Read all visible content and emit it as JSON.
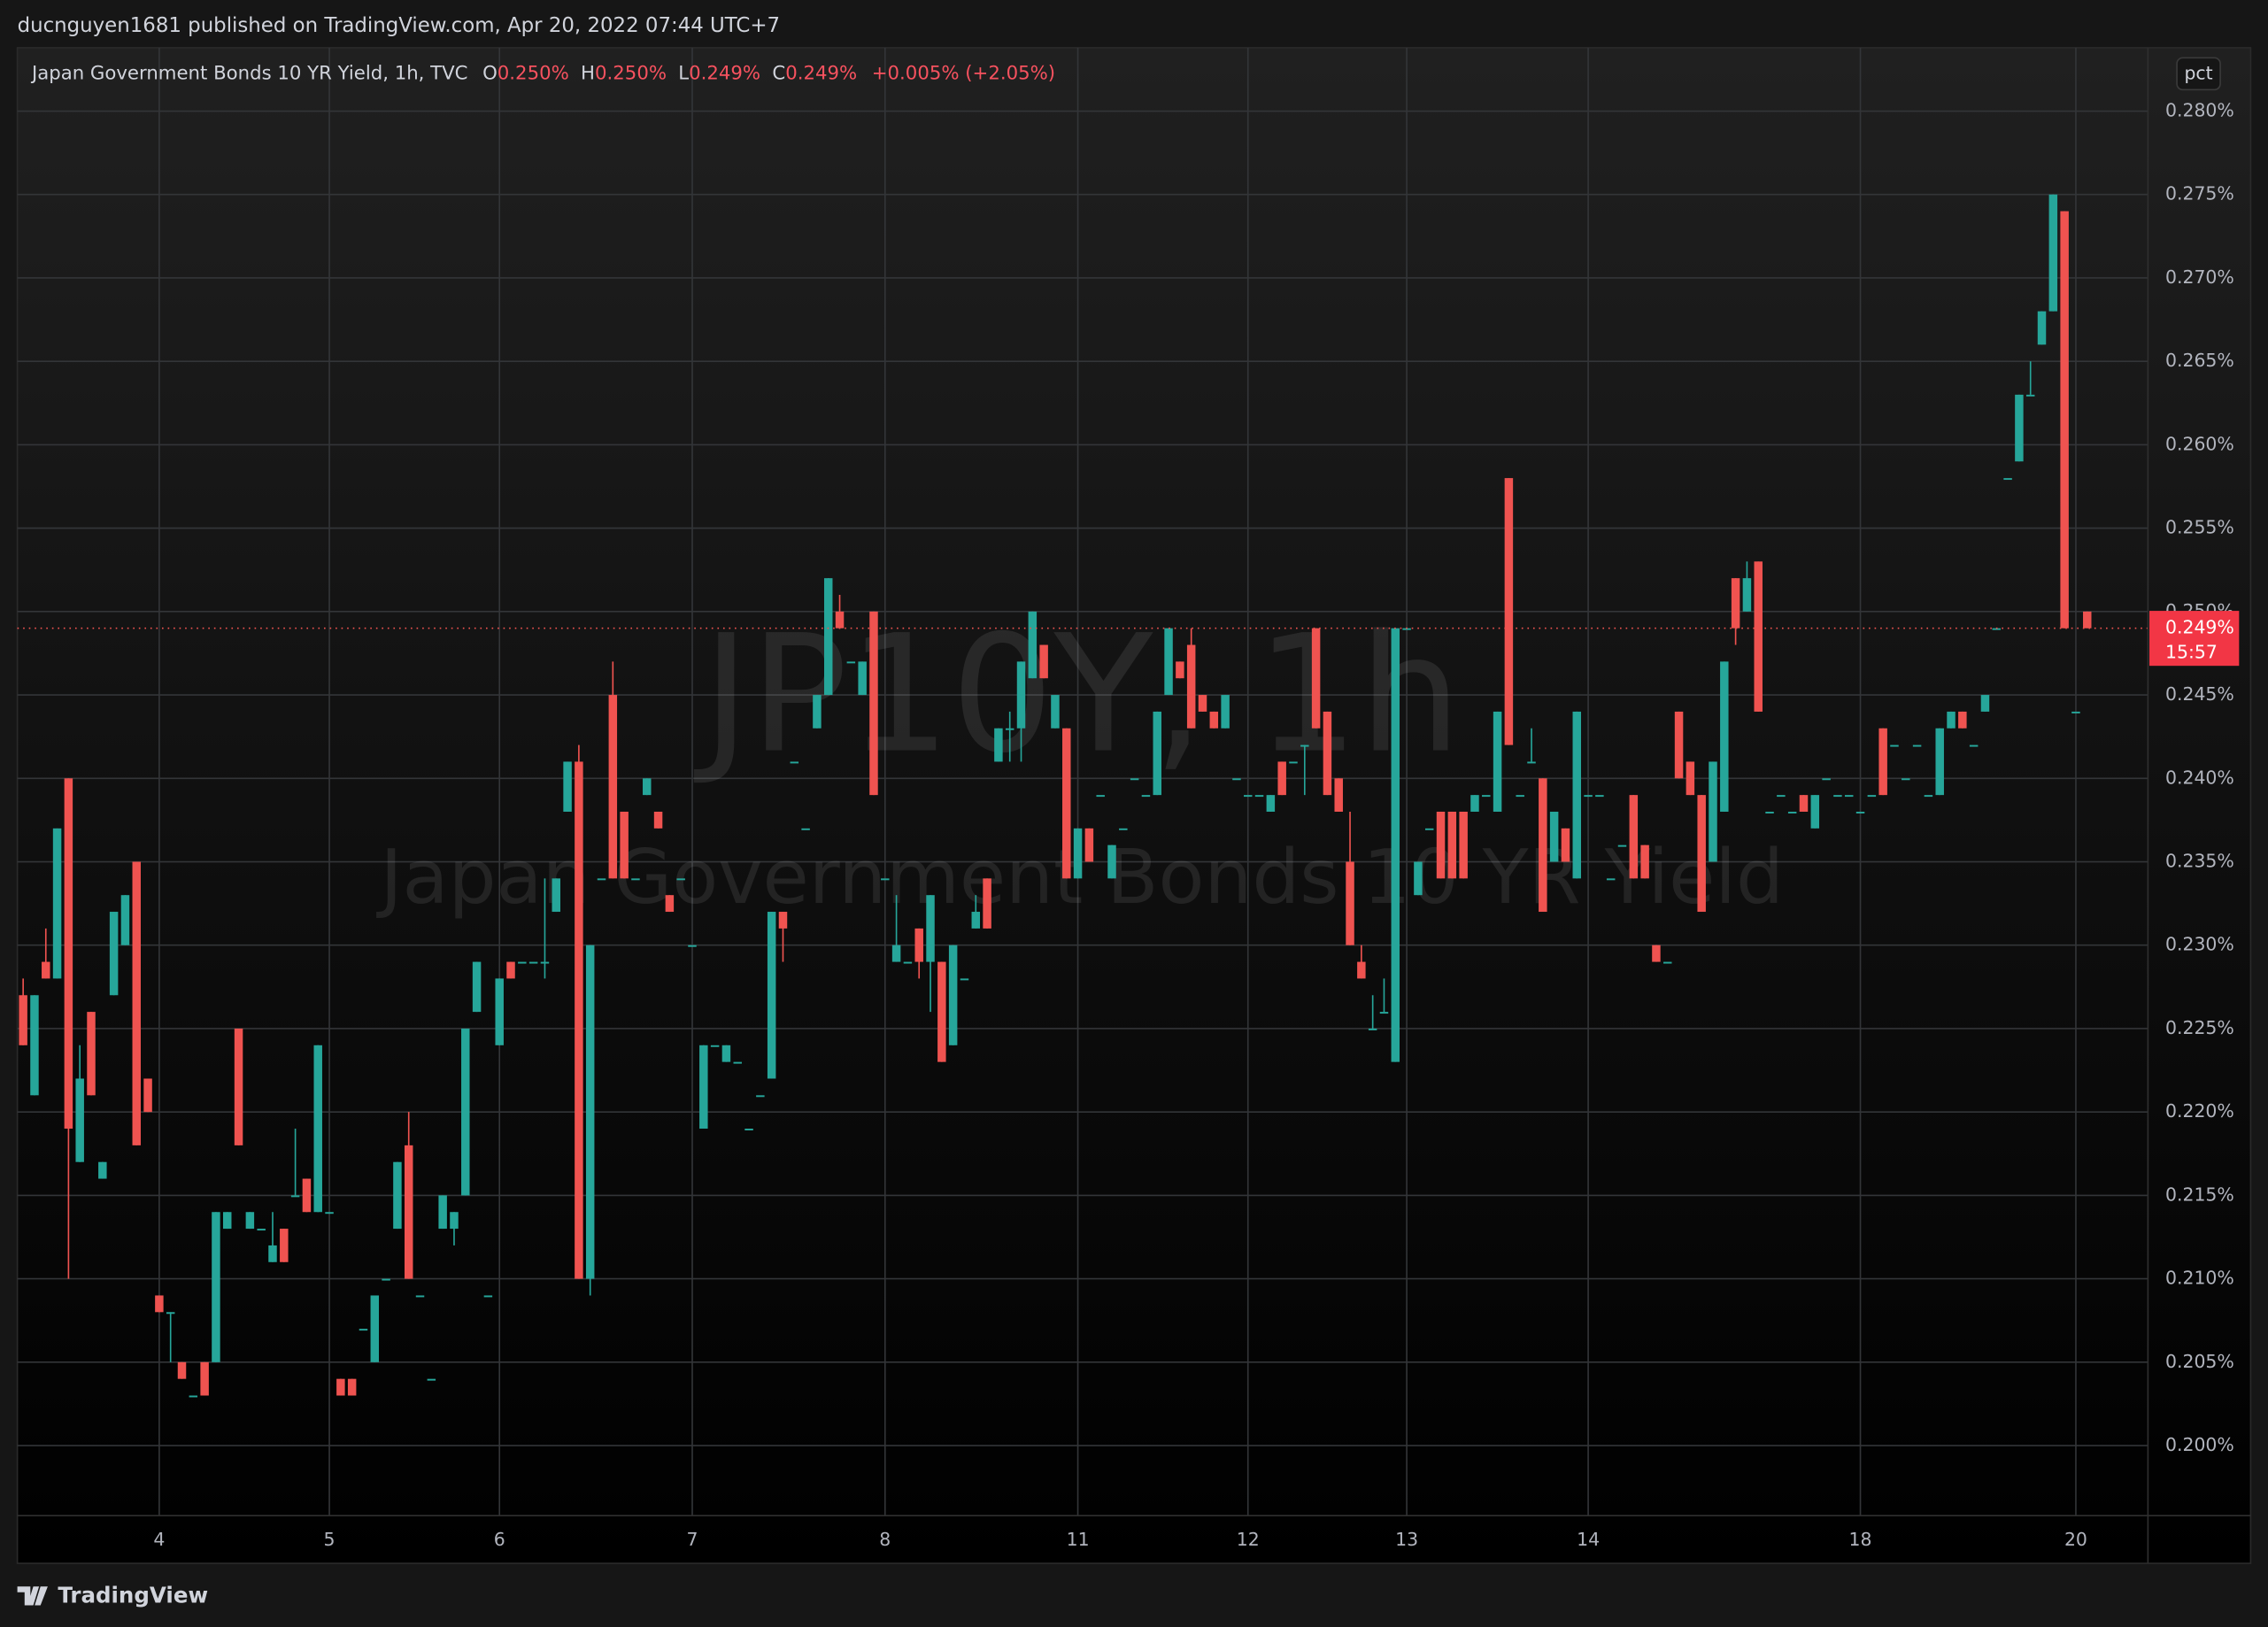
{
  "header": {
    "publisher": "ducnguyen1681 published on TradingView.com, Apr 20, 2022 07:44 UTC+7"
  },
  "chart_data": {
    "type": "candlestick",
    "title": "Japan Government Bonds 10 YR Yield, 1h, TVC",
    "legend": {
      "o_label": "O",
      "o": "0.250%",
      "h_label": "H",
      "h": "0.250%",
      "l_label": "L",
      "l": "0.249%",
      "c_label": "C",
      "c": "0.249%",
      "change": "+0.005% (+2.05%)"
    },
    "watermark": "JP10Y, 1h",
    "watermark_subtitle": "Japan Government Bonds 10 YR Yield",
    "scale_mode": "pct",
    "last_price_label": "0.249%",
    "countdown": "15:57",
    "up_color": "#26a69a",
    "down_color": "#ef5350",
    "grid": true,
    "x": [
      null,
      null,
      null,
      null,
      null,
      null,
      null,
      null,
      null,
      null,
      null,
      null,
      "4",
      null,
      null,
      null,
      null,
      null,
      null,
      null,
      null,
      null,
      null,
      null,
      null,
      null,
      null,
      "5",
      null,
      null,
      null,
      null,
      null,
      null,
      null,
      null,
      null,
      null,
      null,
      null,
      null,
      null,
      "6",
      null,
      null,
      null,
      null,
      null,
      null,
      null,
      null,
      null,
      null,
      null,
      null,
      null,
      null,
      null,
      null,
      "7",
      null,
      null,
      null,
      null,
      null,
      null,
      null,
      null,
      null,
      null,
      null,
      null,
      null,
      null,
      null,
      null,
      "8",
      null,
      null,
      null,
      null,
      null,
      null,
      null,
      null,
      null,
      null,
      null,
      null,
      null,
      null,
      null,
      null,
      "11",
      null,
      null,
      null,
      null,
      null,
      null,
      null,
      null,
      null,
      null,
      null,
      null,
      null,
      null,
      "12",
      null,
      null,
      null,
      null,
      null,
      null,
      null,
      null,
      null,
      null,
      null,
      null,
      null,
      "13",
      null,
      null,
      null,
      null,
      null,
      null,
      null,
      null,
      null,
      null,
      null,
      null,
      null,
      null,
      null,
      "14",
      null,
      null,
      null,
      null,
      null,
      null,
      null,
      null,
      null,
      null,
      null,
      null,
      null,
      null,
      null,
      null,
      null,
      null,
      null,
      null,
      null,
      null,
      null,
      "18",
      null,
      null,
      null,
      null,
      null,
      null,
      null,
      null,
      null,
      null,
      null,
      null,
      null,
      null,
      null,
      null,
      null,
      null,
      "20",
      null
    ],
    "open": [
      0.227,
      0.221,
      0.229,
      0.228,
      0.24,
      0.217,
      0.226,
      0.216,
      0.227,
      0.23,
      0.235,
      0.222,
      0.209,
      0.208,
      0.205,
      0.203,
      0.205,
      0.205,
      0.213,
      0.225,
      0.213,
      0.213,
      0.211,
      0.213,
      0.215,
      0.216,
      0.214,
      0.214,
      0.204,
      0.204,
      0.207,
      0.205,
      0.21,
      0.213,
      0.218,
      0.209,
      0.204,
      0.213,
      0.213,
      0.215,
      0.226,
      0.209,
      0.224,
      0.229,
      0.229,
      0.229,
      0.229,
      0.232,
      0.238,
      0.241,
      0.21,
      0.234,
      0.245,
      0.238,
      0.234,
      0.239,
      0.238,
      0.233,
      0.234,
      0.23,
      0.219,
      0.224,
      0.223,
      0.223,
      0.219,
      0.221,
      0.222,
      0.232,
      0.241,
      0.237,
      0.243,
      0.245,
      0.25,
      0.247,
      0.245,
      0.25,
      0.234,
      0.229,
      0.229,
      0.231,
      0.229,
      0.229,
      0.224,
      0.228,
      0.231,
      0.234,
      0.241,
      0.243,
      0.243,
      0.246,
      0.248,
      0.243,
      0.243,
      0.234,
      0.237,
      0.239,
      0.234,
      0.237,
      0.24,
      0.239,
      0.239,
      0.245,
      0.247,
      0.248,
      0.245,
      0.244,
      0.243,
      0.24,
      0.239,
      0.239,
      0.238,
      0.241,
      0.241,
      0.242,
      0.249,
      0.244,
      0.24,
      0.235,
      0.229,
      0.225,
      0.226,
      0.223,
      0.249,
      0.233,
      0.237,
      0.238,
      0.238,
      0.238,
      0.238,
      0.239,
      0.238,
      0.258,
      0.239,
      0.241,
      0.24,
      0.235,
      0.237,
      0.234,
      0.239,
      0.239,
      0.234,
      0.236,
      0.239,
      0.236,
      0.23,
      0.229,
      0.244,
      0.241,
      0.239,
      0.235,
      0.238,
      0.252,
      0.25,
      0.253,
      0.238,
      0.239,
      0.238,
      0.239,
      0.237,
      0.24,
      0.239,
      0.239,
      0.238,
      0.239,
      0.243,
      0.242,
      0.24,
      0.242,
      0.239,
      0.239,
      0.243,
      0.244,
      0.242,
      0.244,
      0.249,
      0.258,
      0.259,
      0.263,
      0.266,
      0.268,
      0.274,
      0.244,
      0.25
    ],
    "high": [
      0.228,
      0.227,
      0.231,
      0.237,
      0.24,
      0.224,
      0.226,
      0.217,
      0.232,
      0.233,
      0.235,
      0.222,
      0.209,
      0.208,
      0.205,
      0.203,
      0.205,
      0.214,
      0.214,
      0.225,
      0.214,
      0.213,
      0.214,
      0.213,
      0.219,
      0.216,
      0.224,
      0.214,
      0.204,
      0.204,
      0.207,
      0.209,
      0.21,
      0.217,
      0.22,
      0.209,
      0.204,
      0.215,
      0.214,
      0.225,
      0.229,
      0.209,
      0.228,
      0.229,
      0.229,
      0.229,
      0.234,
      0.234,
      0.241,
      0.242,
      0.23,
      0.234,
      0.247,
      0.238,
      0.234,
      0.24,
      0.238,
      0.233,
      0.234,
      0.23,
      0.224,
      0.224,
      0.224,
      0.223,
      0.219,
      0.221,
      0.232,
      0.232,
      0.241,
      0.237,
      0.245,
      0.252,
      0.251,
      0.247,
      0.247,
      0.25,
      0.234,
      0.233,
      0.229,
      0.231,
      0.233,
      0.229,
      0.23,
      0.228,
      0.233,
      0.234,
      0.243,
      0.244,
      0.247,
      0.25,
      0.248,
      0.245,
      0.243,
      0.237,
      0.237,
      0.239,
      0.236,
      0.237,
      0.24,
      0.239,
      0.244,
      0.249,
      0.247,
      0.249,
      0.245,
      0.244,
      0.245,
      0.24,
      0.239,
      0.239,
      0.239,
      0.241,
      0.241,
      0.242,
      0.249,
      0.244,
      0.24,
      0.238,
      0.23,
      0.227,
      0.228,
      0.249,
      0.249,
      0.235,
      0.237,
      0.238,
      0.238,
      0.238,
      0.239,
      0.239,
      0.244,
      0.258,
      0.239,
      0.243,
      0.24,
      0.238,
      0.237,
      0.244,
      0.239,
      0.239,
      0.234,
      0.236,
      0.239,
      0.236,
      0.23,
      0.229,
      0.244,
      0.241,
      0.239,
      0.241,
      0.247,
      0.252,
      0.253,
      0.253,
      0.238,
      0.239,
      0.238,
      0.239,
      0.239,
      0.24,
      0.239,
      0.239,
      0.238,
      0.239,
      0.243,
      0.242,
      0.24,
      0.242,
      0.239,
      0.243,
      0.244,
      0.244,
      0.242,
      0.245,
      0.249,
      0.258,
      0.263,
      0.265,
      0.268,
      0.275,
      0.274,
      0.244,
      0.25
    ],
    "low": [
      0.224,
      0.221,
      0.228,
      0.228,
      0.21,
      0.217,
      0.221,
      0.216,
      0.227,
      0.23,
      0.218,
      0.22,
      0.208,
      0.205,
      0.204,
      0.203,
      0.203,
      0.205,
      0.213,
      0.218,
      0.213,
      0.213,
      0.211,
      0.211,
      0.215,
      0.214,
      0.214,
      0.214,
      0.203,
      0.203,
      0.207,
      0.205,
      0.21,
      0.213,
      0.21,
      0.209,
      0.204,
      0.213,
      0.212,
      0.215,
      0.226,
      0.209,
      0.224,
      0.228,
      0.229,
      0.229,
      0.228,
      0.232,
      0.238,
      0.21,
      0.209,
      0.234,
      0.234,
      0.234,
      0.234,
      0.239,
      0.237,
      0.232,
      0.234,
      0.23,
      0.219,
      0.224,
      0.223,
      0.223,
      0.219,
      0.221,
      0.222,
      0.229,
      0.241,
      0.237,
      0.243,
      0.245,
      0.249,
      0.247,
      0.245,
      0.239,
      0.234,
      0.229,
      0.229,
      0.228,
      0.226,
      0.223,
      0.224,
      0.228,
      0.231,
      0.231,
      0.241,
      0.241,
      0.241,
      0.246,
      0.246,
      0.243,
      0.234,
      0.234,
      0.235,
      0.239,
      0.234,
      0.237,
      0.24,
      0.239,
      0.239,
      0.245,
      0.246,
      0.243,
      0.244,
      0.243,
      0.243,
      0.24,
      0.239,
      0.239,
      0.238,
      0.239,
      0.241,
      0.239,
      0.243,
      0.239,
      0.238,
      0.23,
      0.228,
      0.225,
      0.226,
      0.223,
      0.249,
      0.233,
      0.237,
      0.234,
      0.234,
      0.234,
      0.238,
      0.239,
      0.238,
      0.242,
      0.239,
      0.241,
      0.232,
      0.235,
      0.235,
      0.234,
      0.239,
      0.239,
      0.234,
      0.236,
      0.234,
      0.234,
      0.229,
      0.229,
      0.24,
      0.239,
      0.232,
      0.235,
      0.238,
      0.248,
      0.25,
      0.244,
      0.238,
      0.239,
      0.238,
      0.238,
      0.237,
      0.24,
      0.239,
      0.239,
      0.238,
      0.239,
      0.239,
      0.242,
      0.24,
      0.242,
      0.239,
      0.239,
      0.243,
      0.243,
      0.242,
      0.244,
      0.249,
      0.258,
      0.259,
      0.263,
      0.266,
      0.268,
      0.249,
      0.244,
      0.249
    ],
    "close": [
      0.224,
      0.227,
      0.228,
      0.237,
      0.219,
      0.222,
      0.221,
      0.217,
      0.232,
      0.233,
      0.218,
      0.22,
      0.208,
      0.208,
      0.204,
      0.203,
      0.203,
      0.214,
      0.214,
      0.218,
      0.214,
      0.213,
      0.212,
      0.211,
      0.215,
      0.214,
      0.224,
      0.214,
      0.203,
      0.203,
      0.207,
      0.209,
      0.21,
      0.217,
      0.21,
      0.209,
      0.204,
      0.215,
      0.214,
      0.225,
      0.229,
      0.209,
      0.228,
      0.228,
      0.229,
      0.229,
      0.229,
      0.234,
      0.241,
      0.21,
      0.23,
      0.234,
      0.234,
      0.234,
      0.234,
      0.24,
      0.237,
      0.232,
      0.234,
      0.23,
      0.224,
      0.224,
      0.224,
      0.223,
      0.219,
      0.221,
      0.232,
      0.231,
      0.241,
      0.237,
      0.245,
      0.252,
      0.249,
      0.247,
      0.247,
      0.239,
      0.234,
      0.23,
      0.229,
      0.229,
      0.233,
      0.223,
      0.23,
      0.228,
      0.232,
      0.231,
      0.243,
      0.243,
      0.247,
      0.25,
      0.246,
      0.245,
      0.234,
      0.237,
      0.235,
      0.239,
      0.236,
      0.237,
      0.24,
      0.239,
      0.244,
      0.249,
      0.246,
      0.243,
      0.244,
      0.243,
      0.245,
      0.24,
      0.239,
      0.239,
      0.239,
      0.239,
      0.241,
      0.242,
      0.243,
      0.239,
      0.238,
      0.23,
      0.228,
      0.225,
      0.226,
      0.249,
      0.249,
      0.235,
      0.237,
      0.234,
      0.234,
      0.234,
      0.239,
      0.239,
      0.244,
      0.242,
      0.239,
      0.241,
      0.232,
      0.238,
      0.235,
      0.244,
      0.239,
      0.239,
      0.234,
      0.236,
      0.234,
      0.234,
      0.229,
      0.229,
      0.24,
      0.239,
      0.232,
      0.241,
      0.247,
      0.249,
      0.252,
      0.244,
      0.238,
      0.239,
      0.238,
      0.238,
      0.239,
      0.24,
      0.239,
      0.239,
      0.238,
      0.239,
      0.239,
      0.242,
      0.24,
      0.242,
      0.239,
      0.243,
      0.244,
      0.243,
      0.242,
      0.245,
      0.249,
      0.258,
      0.263,
      0.263,
      0.268,
      0.275,
      0.249,
      0.244,
      0.249
    ],
    "ylim": [
      0.1958,
      0.2838
    ],
    "yticks": [
      {
        "value": 0.2,
        "label": "0.200%"
      },
      {
        "value": 0.205,
        "label": "0.205%"
      },
      {
        "value": 0.21,
        "label": "0.210%"
      },
      {
        "value": 0.215,
        "label": "0.215%"
      },
      {
        "value": 0.22,
        "label": "0.220%"
      },
      {
        "value": 0.225,
        "label": "0.225%"
      },
      {
        "value": 0.23,
        "label": "0.230%"
      },
      {
        "value": 0.235,
        "label": "0.235%"
      },
      {
        "value": 0.24,
        "label": "0.240%"
      },
      {
        "value": 0.245,
        "label": "0.245%"
      },
      {
        "value": 0.25,
        "label": "0.250%"
      },
      {
        "value": 0.255,
        "label": "0.255%"
      },
      {
        "value": 0.26,
        "label": "0.260%"
      },
      {
        "value": 0.265,
        "label": "0.265%"
      },
      {
        "value": 0.27,
        "label": "0.270%"
      },
      {
        "value": 0.275,
        "label": "0.275%"
      },
      {
        "value": 0.28,
        "label": "0.280%"
      }
    ]
  },
  "footer": {
    "brand": "TradingView"
  }
}
